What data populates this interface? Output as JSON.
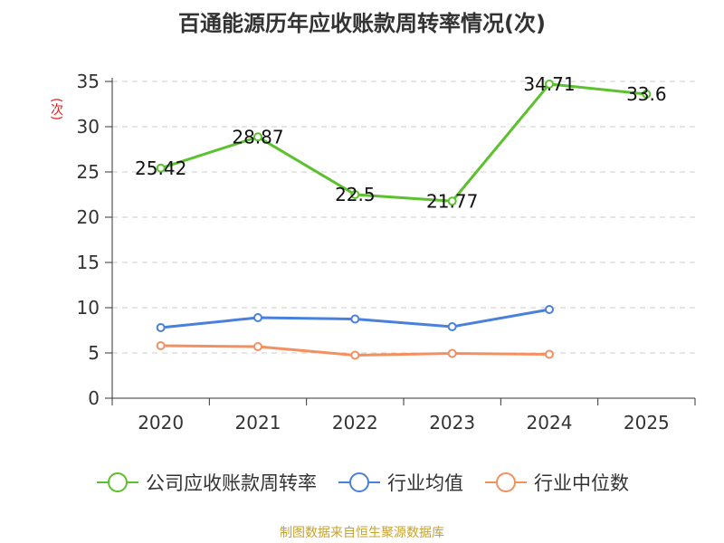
{
  "chart_data": {
    "type": "line",
    "title": "百通能源历年应收账款周转率情况(次)",
    "ylabel": "(次)",
    "categories": [
      "2020",
      "2021",
      "2022",
      "2023",
      "2024",
      "2025"
    ],
    "ylim": [
      0,
      35
    ],
    "yticks": [
      0,
      5,
      10,
      15,
      20,
      25,
      30,
      35
    ],
    "grid": "horizontal-dashed",
    "legend_position": "bottom",
    "series": [
      {
        "name": "公司应收账款周转率",
        "color": "#5cc12e",
        "values": [
          25.42,
          28.87,
          22.5,
          21.77,
          34.71,
          33.6
        ],
        "labels": [
          "25.42",
          "28.87",
          "22.5",
          "21.77",
          "34.71",
          "33.6"
        ]
      },
      {
        "name": "行业均值",
        "color": "#4a80dc",
        "values": [
          7.8,
          8.9,
          8.75,
          7.9,
          9.8,
          null
        ]
      },
      {
        "name": "行业中位数",
        "color": "#f39060",
        "values": [
          5.8,
          5.7,
          4.75,
          4.95,
          4.85,
          null
        ]
      }
    ]
  },
  "source": "制图数据来自恒生聚源数据库"
}
